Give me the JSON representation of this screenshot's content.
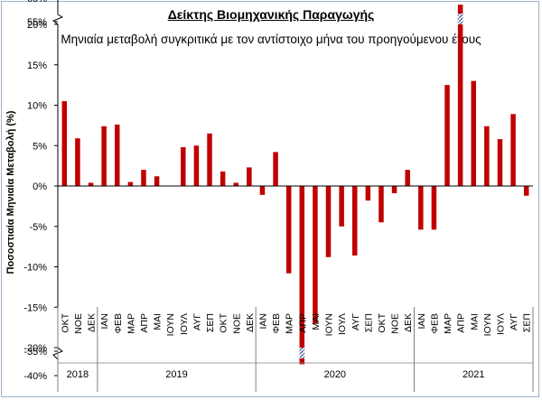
{
  "title": "Δείκτης Βιομηχανικής Παραγωγής",
  "subtitle": "Μηνιαία μεταβολή συγκριτικά με τον αντίστοιχο μήνα του προηγούμενου έτους",
  "colors": {
    "bar": "#c00000",
    "axis": "#000000",
    "frame": "#9db3cc",
    "hatch": "#2f5597"
  },
  "chart_data": {
    "type": "bar",
    "title": "Δείκτης Βιομηχανικής Παραγωγής",
    "subtitle": "Μηνιαία μεταβολή συγκριτικά με τον αντίστοιχο μήνα του προηγούμενου έτους",
    "ylabel": "Ποσοστιαία Μηνιαία Μεταβολή (%)",
    "xlabel": "",
    "ylim": [
      -40,
      60
    ],
    "axis_breaks": [
      [
        20,
        55
      ],
      [
        -35,
        -20
      ]
    ],
    "ytick_labels": [
      "60%",
      "55%",
      "20%",
      "15%",
      "10%",
      "5%",
      "0%",
      "-5%",
      "-10%",
      "-15%",
      "-20%",
      "-35%",
      "-40%"
    ],
    "grid": false,
    "legend": "none",
    "categories": [
      "ΟΚΤ",
      "ΝΟΕ",
      "ΔΕΚ",
      "ΙΑΝ",
      "ΦΕΒ",
      "ΜΑΡ",
      "ΑΠΡ",
      "ΜΑΙ",
      "ΙΟΥΝ",
      "ΙΟΥΛ",
      "ΑΥΓ",
      "ΣΕΠ",
      "ΟΚΤ",
      "ΝΟΕ",
      "ΔΕΚ",
      "ΙΑΝ",
      "ΦΕΒ",
      "ΜΑΡ",
      "ΑΠΡ",
      "ΜΑΙ",
      "ΙΟΥΝ",
      "ΙΟΥΛ",
      "ΑΥΓ",
      "ΣΕΠ",
      "ΟΚΤ",
      "ΝΟΕ",
      "ΔΕΚ",
      "ΙΑΝ",
      "ΦΕΒ",
      "ΜΑΡ",
      "ΑΠΡ",
      "ΜΑΙ",
      "ΙΟΥΝ",
      "ΙΟΥΛ",
      "ΑΥΓ",
      "ΣΕΠ"
    ],
    "years": [
      {
        "label": "2018",
        "count": 3
      },
      {
        "label": "2019",
        "count": 12
      },
      {
        "label": "2020",
        "count": 12
      },
      {
        "label": "2021",
        "count": 9
      }
    ],
    "values": [
      10.5,
      5.9,
      0.4,
      7.4,
      7.6,
      0.5,
      2.0,
      1.2,
      0.0,
      4.8,
      5.0,
      6.5,
      1.8,
      0.4,
      2.3,
      -1.1,
      4.2,
      -10.8,
      -36.5,
      -17.0,
      -8.8,
      -5.0,
      -8.6,
      -1.8,
      -4.5,
      -0.9,
      2.0,
      -5.4,
      -5.4,
      12.5,
      58.0,
      13.0,
      7.4,
      5.8,
      8.9,
      -1.2
    ]
  }
}
